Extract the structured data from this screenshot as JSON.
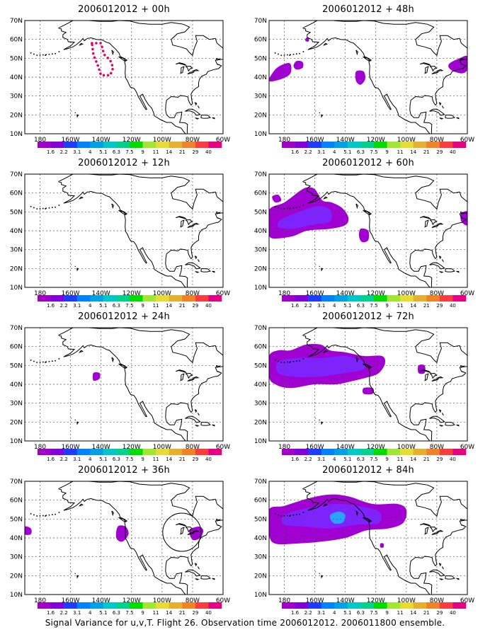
{
  "caption": "Signal Variance for u,v,T. Flight 26. Observation time 2006012012. 2006011800 ensemble.",
  "lat_labels": [
    "70N",
    "60N",
    "50N",
    "40N",
    "30N",
    "20N",
    "10N"
  ],
  "lon_labels": [
    "180",
    "160W",
    "140W",
    "120W",
    "100W",
    "80W",
    "60W"
  ],
  "colorbar": {
    "labels": [
      "1.6",
      "2.2",
      "3.1",
      "4",
      "5.1",
      "6.3",
      "7.5",
      "9",
      "11",
      "14",
      "21",
      "29",
      "40"
    ],
    "colors": [
      "#a000c8",
      "#8200dc",
      "#1e3cff",
      "#0082ff",
      "#00a0e6",
      "#00c8c8",
      "#00d28c",
      "#00dc00",
      "#a0e632",
      "#e6dc32",
      "#e6af2d",
      "#f08228",
      "#fa3c3c",
      "#e60082"
    ]
  },
  "panels": [
    {
      "title": "2006012012 + 00h"
    },
    {
      "title": "2006012012 + 48h"
    },
    {
      "title": "2006012012 + 12h"
    },
    {
      "title": "2006012012 + 60h"
    },
    {
      "title": "2006012012 + 24h"
    },
    {
      "title": "2006012012 + 72h"
    },
    {
      "title": "2006012012 + 36h"
    },
    {
      "title": "2006012012 + 84h"
    }
  ]
}
